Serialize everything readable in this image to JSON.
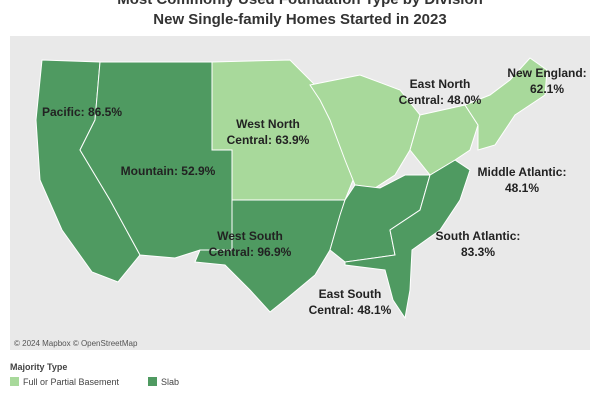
{
  "title": [
    "Most Commonly Used Foundation Type by Division",
    "New Single-family Homes Started in 2023"
  ],
  "legend": {
    "title": "Majority Type",
    "items": [
      {
        "name": "Full or Partial Basement",
        "color": "#a8d99b"
      },
      {
        "name": "Slab",
        "color": "#4f9a61"
      }
    ]
  },
  "divisions": [
    {
      "label": [
        "Pacific: 86.5%"
      ],
      "type": "Slab"
    },
    {
      "label": [
        "Mountain: 52.9%"
      ],
      "type": "Slab"
    },
    {
      "label": [
        "West North",
        "Central: 63.9%"
      ],
      "type": "Full or Partial Basement"
    },
    {
      "label": [
        "West South",
        "Central: 96.9%"
      ],
      "type": "Slab"
    },
    {
      "label": [
        "East North",
        "Central: 48.0%"
      ],
      "type": "Full or Partial Basement"
    },
    {
      "label": [
        "East South",
        "Central: 48.1%"
      ],
      "type": "Slab"
    },
    {
      "label": [
        "South Atlantic:",
        "83.3%"
      ],
      "type": "Slab"
    },
    {
      "label": [
        "Middle Atlantic:",
        "48.1%"
      ],
      "type": "Full or Partial Basement"
    },
    {
      "label": [
        "New England:",
        "62.1%"
      ],
      "type": "Full or Partial Basement"
    }
  ],
  "attribution": "© 2024 Mapbox © OpenStreetMap"
}
